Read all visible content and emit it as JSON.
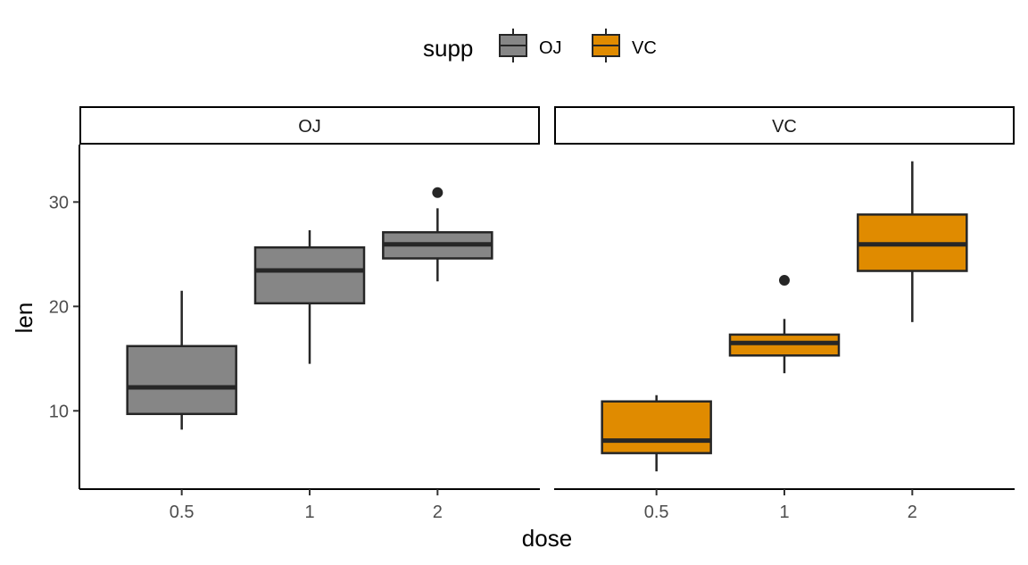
{
  "chart_data": {
    "type": "boxplot",
    "xlabel": "dose",
    "ylabel": "len",
    "ylim": [
      2.5,
      35.5
    ],
    "yticks": [
      10,
      20,
      30
    ],
    "categories": [
      "0.5",
      "1",
      "2"
    ],
    "legend": {
      "title": "supp",
      "position": "top",
      "entries": [
        {
          "label": "OJ",
          "color": "#868686"
        },
        {
          "label": "VC",
          "color": "#E08B00"
        }
      ]
    },
    "facets": [
      {
        "label": "OJ",
        "fill": "#868686",
        "boxes": [
          {
            "x": "0.5",
            "lower_whisker": 8.2,
            "q1": 9.7,
            "median": 12.25,
            "q3": 16.2,
            "upper_whisker": 21.5,
            "outliers": []
          },
          {
            "x": "1",
            "lower_whisker": 14.5,
            "q1": 20.3,
            "median": 23.45,
            "q3": 25.65,
            "upper_whisker": 27.3,
            "outliers": []
          },
          {
            "x": "2",
            "lower_whisker": 22.4,
            "q1": 24.6,
            "median": 25.95,
            "q3": 27.1,
            "upper_whisker": 29.4,
            "outliers": [
              30.9
            ]
          }
        ]
      },
      {
        "label": "VC",
        "fill": "#E08B00",
        "boxes": [
          {
            "x": "0.5",
            "lower_whisker": 4.2,
            "q1": 5.95,
            "median": 7.15,
            "q3": 10.9,
            "upper_whisker": 11.5,
            "outliers": []
          },
          {
            "x": "1",
            "lower_whisker": 13.6,
            "q1": 15.3,
            "median": 16.5,
            "q3": 17.3,
            "upper_whisker": 18.8,
            "outliers": [
              22.5
            ]
          },
          {
            "x": "2",
            "lower_whisker": 18.5,
            "q1": 23.4,
            "median": 25.95,
            "q3": 28.8,
            "upper_whisker": 33.9,
            "outliers": []
          }
        ]
      }
    ],
    "grid": false
  }
}
